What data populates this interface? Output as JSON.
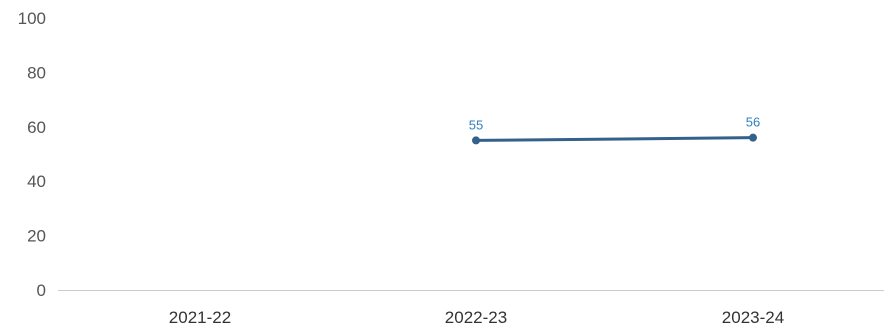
{
  "chart_data": {
    "type": "line",
    "categories": [
      "2021-22",
      "2022-23",
      "2023-24"
    ],
    "series": [
      {
        "values": [
          null,
          55,
          56
        ],
        "color": "#34608c",
        "label_color": "#2f7fc1"
      }
    ],
    "y_ticks": [
      0,
      20,
      40,
      60,
      80,
      100
    ],
    "ylim": [
      0,
      100
    ],
    "grid": false,
    "data_labels": true
  }
}
